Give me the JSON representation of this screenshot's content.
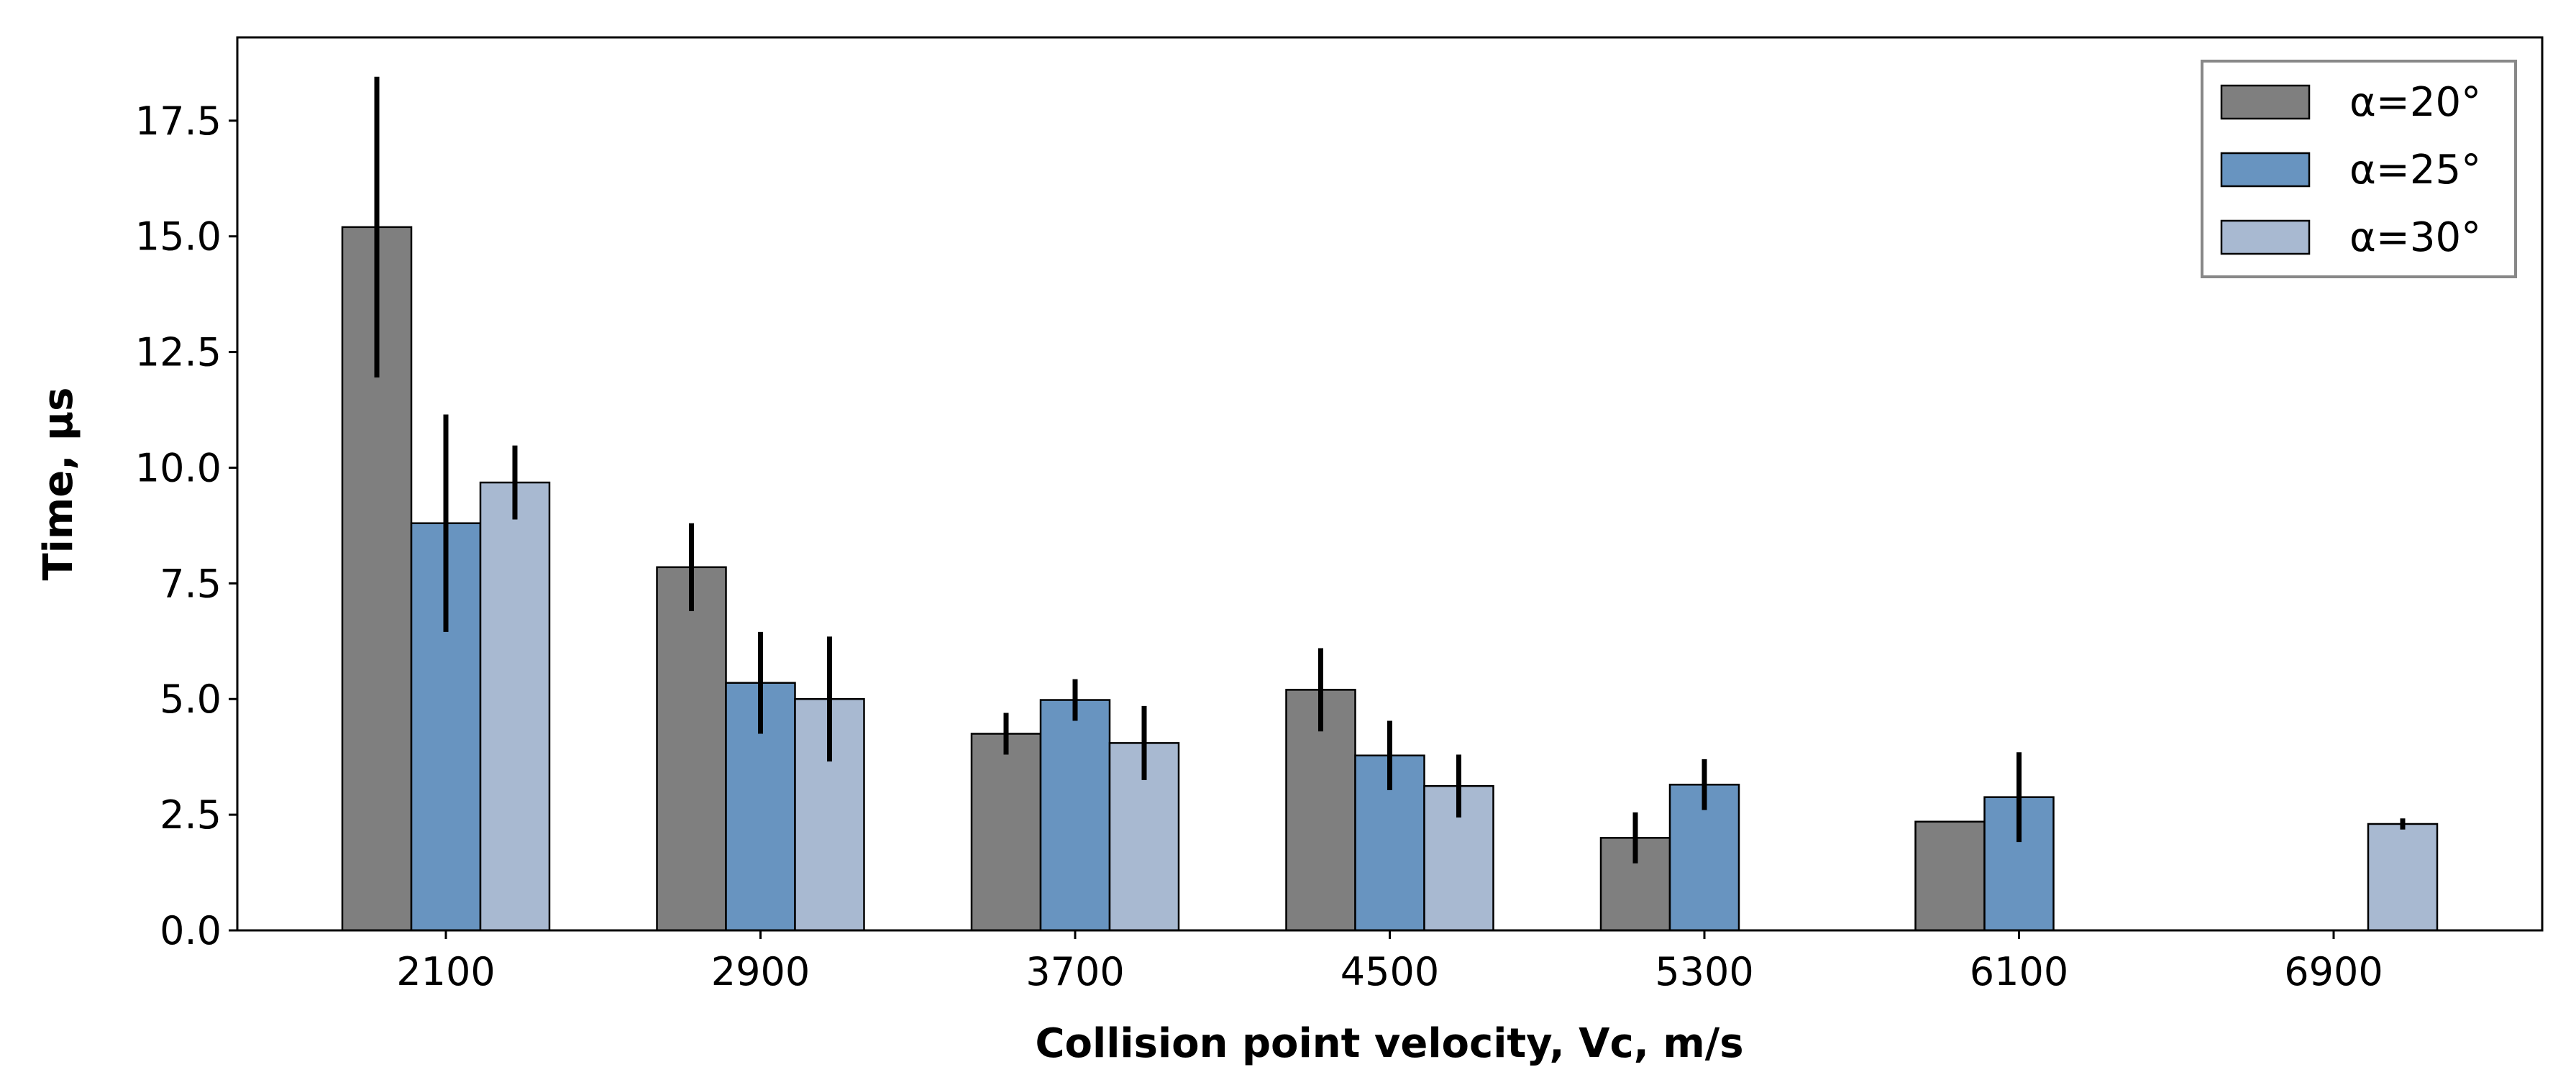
{
  "chart_data": {
    "type": "bar",
    "title": "",
    "xlabel": "Collision point velocity, Vc, m/s",
    "ylabel": "Time, μs",
    "categories": [
      "2100",
      "2900",
      "3700",
      "4500",
      "5300",
      "6100",
      "6900"
    ],
    "yticks": [
      "0.0",
      "2.5",
      "5.0",
      "7.5",
      "10.0",
      "12.5",
      "15.0",
      "17.5"
    ],
    "ylim": [
      0,
      19.3
    ],
    "legend_position": "top-right",
    "series": [
      {
        "name": "α=20°",
        "color": "#7f7f7f",
        "values": [
          15.2,
          7.85,
          4.25,
          5.2,
          2.0,
          2.35,
          0
        ],
        "errors": [
          3.25,
          0.95,
          0.45,
          0.9,
          0.55,
          0,
          0
        ]
      },
      {
        "name": "α=25°",
        "color": "#6894c0",
        "values": [
          8.8,
          5.35,
          4.98,
          3.78,
          3.15,
          2.88,
          0
        ],
        "errors": [
          2.35,
          1.1,
          0.45,
          0.75,
          0.55,
          0.97,
          0
        ]
      },
      {
        "name": "α=30°",
        "color": "#a8b9d1",
        "values": [
          9.68,
          5.0,
          4.05,
          3.12,
          0,
          0,
          2.3
        ],
        "errors": [
          0.8,
          1.35,
          0.8,
          0.68,
          0,
          0,
          0.12
        ]
      }
    ]
  }
}
